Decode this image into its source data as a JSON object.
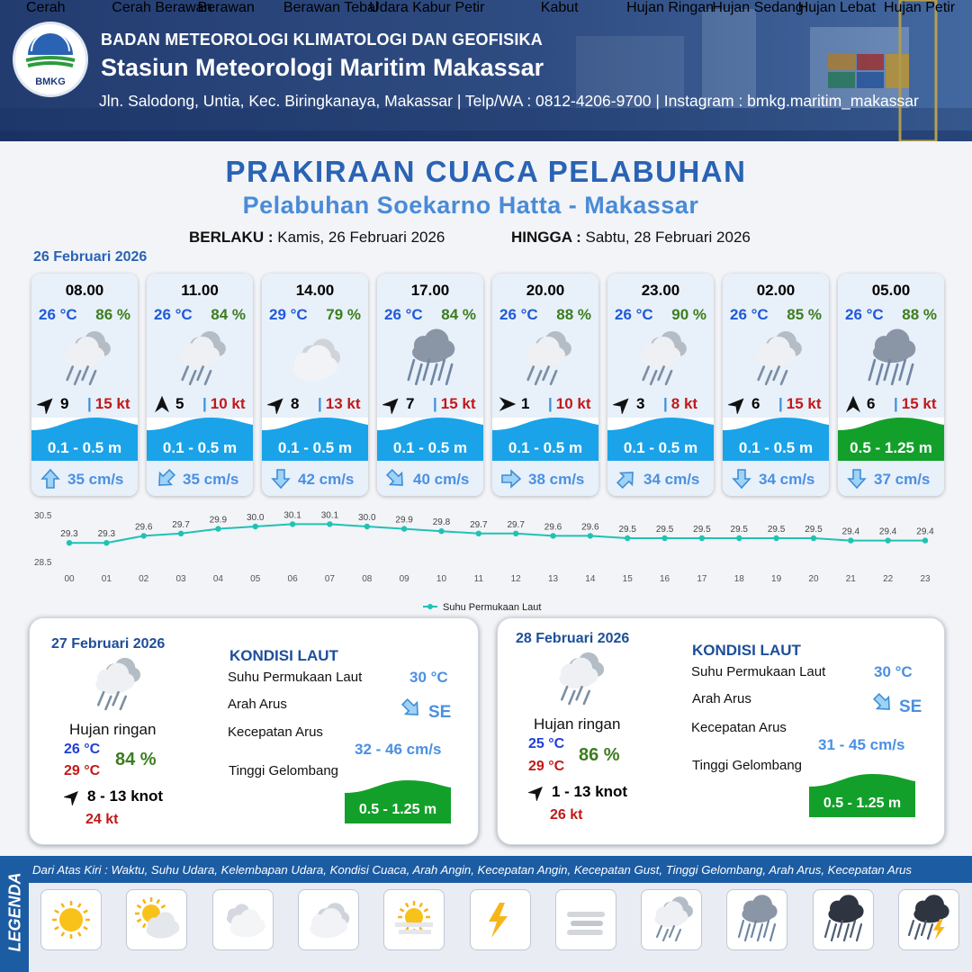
{
  "header": {
    "logo_text": "BMKG",
    "agency": "BADAN METEOROLOGI KLIMATOLOGI DAN GEOFISIKA",
    "station": "Stasiun Meteorologi Maritim Makassar",
    "address": "Jln. Salodong, Untia, Kec. Biringkanaya, Makassar | Telp/WA : 0812-4206-9700 | Instagram : bmkg.maritim_makassar"
  },
  "title": "PRAKIRAAN CUACA PELABUHAN",
  "subtitle": "Pelabuhan Soekarno Hatta - Makassar",
  "validity": {
    "from_label": "BERLAKU :",
    "from_value": "Kamis, 26 Februari 2026",
    "to_label": "HINGGA :",
    "to_value": "Sabtu, 28 Februari 2026"
  },
  "day1_date": "26 Februari 2026",
  "hourly": [
    {
      "time": "08.00",
      "temp": "26 °C",
      "humidity": "86 %",
      "weather_icon": "hujan-ringan",
      "wind_dir": "NE",
      "wind_speed": "9",
      "gust": "15 kt",
      "wave": "0.1 - 0.5 m",
      "wave_color": "#1aa3e8",
      "current_dir": "N",
      "current_speed": "35 cm/s"
    },
    {
      "time": "11.00",
      "temp": "26 °C",
      "humidity": "84 %",
      "weather_icon": "hujan-ringan",
      "wind_dir": "N",
      "wind_speed": "5",
      "gust": "10 kt",
      "wave": "0.1 - 0.5 m",
      "wave_color": "#1aa3e8",
      "current_dir": "SW",
      "current_speed": "35 cm/s"
    },
    {
      "time": "14.00",
      "temp": "29 °C",
      "humidity": "79 %",
      "weather_icon": "berawan-tebal",
      "wind_dir": "NE",
      "wind_speed": "8",
      "gust": "13 kt",
      "wave": "0.1 - 0.5 m",
      "wave_color": "#1aa3e8",
      "current_dir": "S",
      "current_speed": "42 cm/s"
    },
    {
      "time": "17.00",
      "temp": "26 °C",
      "humidity": "84 %",
      "weather_icon": "hujan-sedang",
      "wind_dir": "NE",
      "wind_speed": "7",
      "gust": "15 kt",
      "wave": "0.1 - 0.5 m",
      "wave_color": "#1aa3e8",
      "current_dir": "SE",
      "current_speed": "40 cm/s"
    },
    {
      "time": "20.00",
      "temp": "26 °C",
      "humidity": "88 %",
      "weather_icon": "hujan-ringan",
      "wind_dir": "E",
      "wind_speed": "1",
      "gust": "10 kt",
      "wave": "0.1 - 0.5 m",
      "wave_color": "#1aa3e8",
      "current_dir": "E",
      "current_speed": "38 cm/s"
    },
    {
      "time": "23.00",
      "temp": "26 °C",
      "humidity": "90 %",
      "weather_icon": "hujan-ringan",
      "wind_dir": "NE",
      "wind_speed": "3",
      "gust": "8 kt",
      "wave": "0.1 - 0.5 m",
      "wave_color": "#1aa3e8",
      "current_dir": "NE",
      "current_speed": "34 cm/s"
    },
    {
      "time": "02.00",
      "temp": "26 °C",
      "humidity": "85 %",
      "weather_icon": "hujan-ringan",
      "wind_dir": "NE",
      "wind_speed": "6",
      "gust": "15 kt",
      "wave": "0.1 - 0.5 m",
      "wave_color": "#1aa3e8",
      "current_dir": "S",
      "current_speed": "34 cm/s"
    },
    {
      "time": "05.00",
      "temp": "26 °C",
      "humidity": "88 %",
      "weather_icon": "hujan-sedang",
      "wind_dir": "N",
      "wind_speed": "6",
      "gust": "15 kt",
      "wave": "0.5 - 1.25 m",
      "wave_color": "#13a02a",
      "current_dir": "S",
      "current_speed": "37 cm/s"
    }
  ],
  "chart_data": {
    "type": "line",
    "x": [
      "00",
      "01",
      "02",
      "03",
      "04",
      "05",
      "06",
      "07",
      "08",
      "09",
      "10",
      "11",
      "12",
      "13",
      "14",
      "15",
      "16",
      "17",
      "18",
      "19",
      "20",
      "21",
      "22",
      "23"
    ],
    "series": [
      {
        "name": "Suhu Permukaan Laut",
        "values": [
          29.3,
          29.3,
          29.6,
          29.7,
          29.9,
          30.0,
          30.1,
          30.1,
          30.0,
          29.9,
          29.8,
          29.7,
          29.7,
          29.6,
          29.6,
          29.5,
          29.5,
          29.5,
          29.5,
          29.5,
          29.5,
          29.4,
          29.4,
          29.4
        ],
        "color": "#1fc2b4"
      }
    ],
    "ylim": [
      28.5,
      30.5
    ],
    "y_ticks": [
      "30.5",
      "28.5"
    ],
    "legend_position": "bottom-center"
  },
  "days": [
    {
      "date": "27 Februari 2026",
      "condition": "Hujan ringan",
      "tmin": "26 °C",
      "tmax": "29 °C",
      "humidity": "84 %",
      "wind_dir": "NE",
      "wind_range": "8  - 13 knot",
      "gust": "24 kt",
      "sea_title": "KONDISI LAUT",
      "sst_label": "Suhu Permukaan Laut",
      "sst": "30 °C",
      "cur_dir_label": "Arah Arus",
      "cur_dir": "SE",
      "cur_spd_label": "Kecepatan Arus",
      "cur_spd": "32 - 46 cm/s",
      "wave_label": "Tinggi Gelombang",
      "wave": "0.5 - 1.25 m"
    },
    {
      "date": "28 Februari 2026",
      "condition": "Hujan ringan",
      "tmin": "25 °C",
      "tmax": "29 °C",
      "humidity": "86 %",
      "wind_dir": "NE",
      "wind_range": "1  - 13 knot",
      "gust": "26 kt",
      "sea_title": "KONDISI LAUT",
      "sst_label": "Suhu Permukaan Laut",
      "sst": "30 °C",
      "cur_dir_label": "Arah Arus",
      "cur_dir": "SE",
      "cur_spd_label": "Kecepatan Arus",
      "cur_spd": "31 - 45 cm/s",
      "wave_label": "Tinggi Gelombang",
      "wave": "0.5 - 1.25 m"
    }
  ],
  "legend": {
    "title": "LEGENDA",
    "description": "Dari Atas Kiri : Waktu, Suhu Udara, Kelembapan Udara, Kondisi Cuaca, Arah Angin, Kecepatan Angin, Kecepatan Gust, Tinggi Gelombang, Arah Arus, Kecepatan Arus",
    "items": [
      {
        "label": "Cerah",
        "icon": "cerah"
      },
      {
        "label": "Cerah Berawan",
        "icon": "cerah-berawan"
      },
      {
        "label": "Berawan",
        "icon": "berawan"
      },
      {
        "label": "Berawan Tebal",
        "icon": "berawan-tebal"
      },
      {
        "label": "Udara Kabur",
        "icon": "udara-kabur"
      },
      {
        "label": "Petir",
        "icon": "petir"
      },
      {
        "label": "Kabut",
        "icon": "kabut"
      },
      {
        "label": "Hujan Ringan",
        "icon": "hujan-ringan"
      },
      {
        "label": "Hujan Sedang",
        "icon": "hujan-sedang"
      },
      {
        "label": "Hujan Lebat",
        "icon": "hujan-lebat"
      },
      {
        "label": "Hujan Petir",
        "icon": "hujan-petir"
      }
    ]
  }
}
